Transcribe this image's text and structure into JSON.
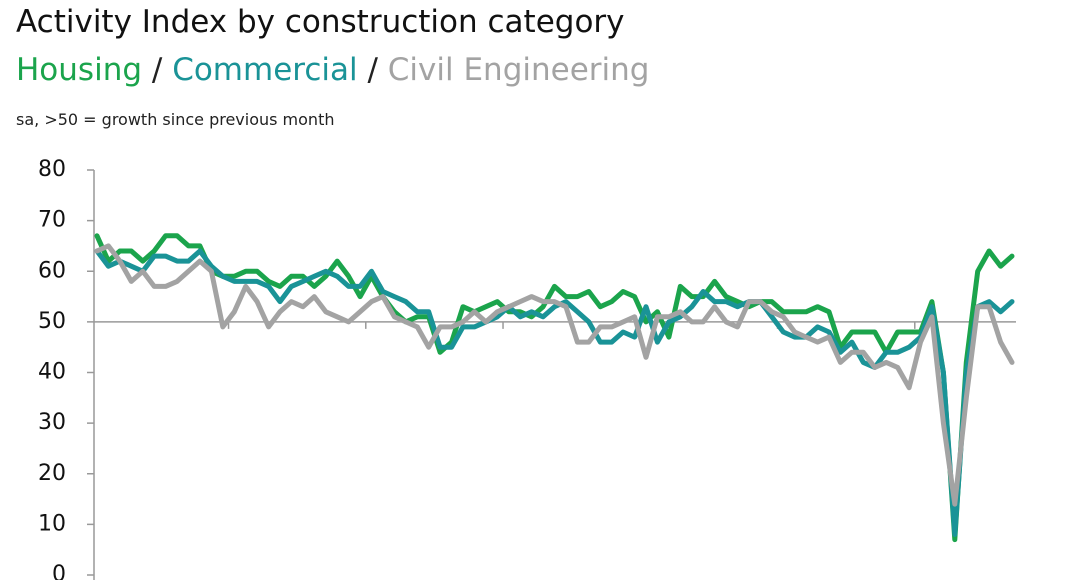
{
  "chart_data": {
    "type": "line",
    "title": "Activity Index by construction category",
    "subtitle_separator": "/",
    "note": "sa, >50 = growth since previous month",
    "series": [
      {
        "name": "Housing",
        "color": "#1ba44c",
        "values": [
          67,
          62,
          64,
          64,
          62,
          64,
          67,
          67,
          65,
          65,
          60,
          59,
          59,
          60,
          60,
          58,
          57,
          59,
          59,
          57,
          59,
          62,
          59,
          55,
          59,
          55,
          52,
          50,
          51,
          51,
          44,
          46,
          53,
          52,
          53,
          54,
          52,
          52,
          51,
          53,
          57,
          55,
          55,
          56,
          53,
          54,
          56,
          55,
          50,
          52,
          47,
          57,
          55,
          55,
          58,
          55,
          54,
          53,
          54,
          54,
          52,
          52,
          52,
          53,
          52,
          45,
          48,
          48,
          48,
          44,
          48,
          48,
          48,
          54,
          40,
          7,
          42,
          60,
          64,
          61,
          63
        ]
      },
      {
        "name": "Commercial",
        "color": "#1a9397",
        "values": [
          64,
          61,
          62,
          61,
          60,
          63,
          63,
          62,
          62,
          64,
          61,
          59,
          58,
          58,
          58,
          57,
          54,
          57,
          58,
          59,
          60,
          59,
          57,
          57,
          60,
          56,
          55,
          54,
          52,
          52,
          45,
          45,
          49,
          49,
          50,
          51,
          53,
          51,
          52,
          51,
          53,
          54,
          52,
          50,
          46,
          46,
          48,
          47,
          53,
          46,
          50,
          51,
          53,
          56,
          54,
          54,
          53,
          54,
          54,
          51,
          48,
          47,
          47,
          49,
          48,
          44,
          46,
          42,
          41,
          44,
          44,
          45,
          47,
          53,
          40,
          8,
          40,
          53,
          54,
          52,
          54
        ]
      },
      {
        "name": "Civil Engineering",
        "color": "#a3a3a3",
        "values": [
          64,
          65,
          62,
          58,
          60,
          57,
          57,
          58,
          60,
          62,
          60,
          49,
          52,
          57,
          54,
          49,
          52,
          54,
          53,
          55,
          52,
          51,
          50,
          52,
          54,
          55,
          51,
          50,
          49,
          45,
          49,
          49,
          50,
          52,
          50,
          52,
          53,
          54,
          55,
          54,
          54,
          53,
          46,
          46,
          49,
          49,
          50,
          51,
          43,
          51,
          51,
          52,
          50,
          50,
          53,
          50,
          49,
          54,
          54,
          52,
          51,
          48,
          47,
          46,
          47,
          42,
          44,
          44,
          41,
          42,
          41,
          37,
          46,
          51,
          30,
          14,
          35,
          53,
          53,
          46,
          42
        ]
      }
    ],
    "ylim": [
      0,
      80
    ],
    "yticks": [
      0,
      10,
      20,
      30,
      40,
      50,
      60,
      70,
      80
    ],
    "xticks": [
      11.5,
      23.5,
      35.5,
      47.5,
      59.5,
      71.5
    ],
    "hline": 50
  }
}
